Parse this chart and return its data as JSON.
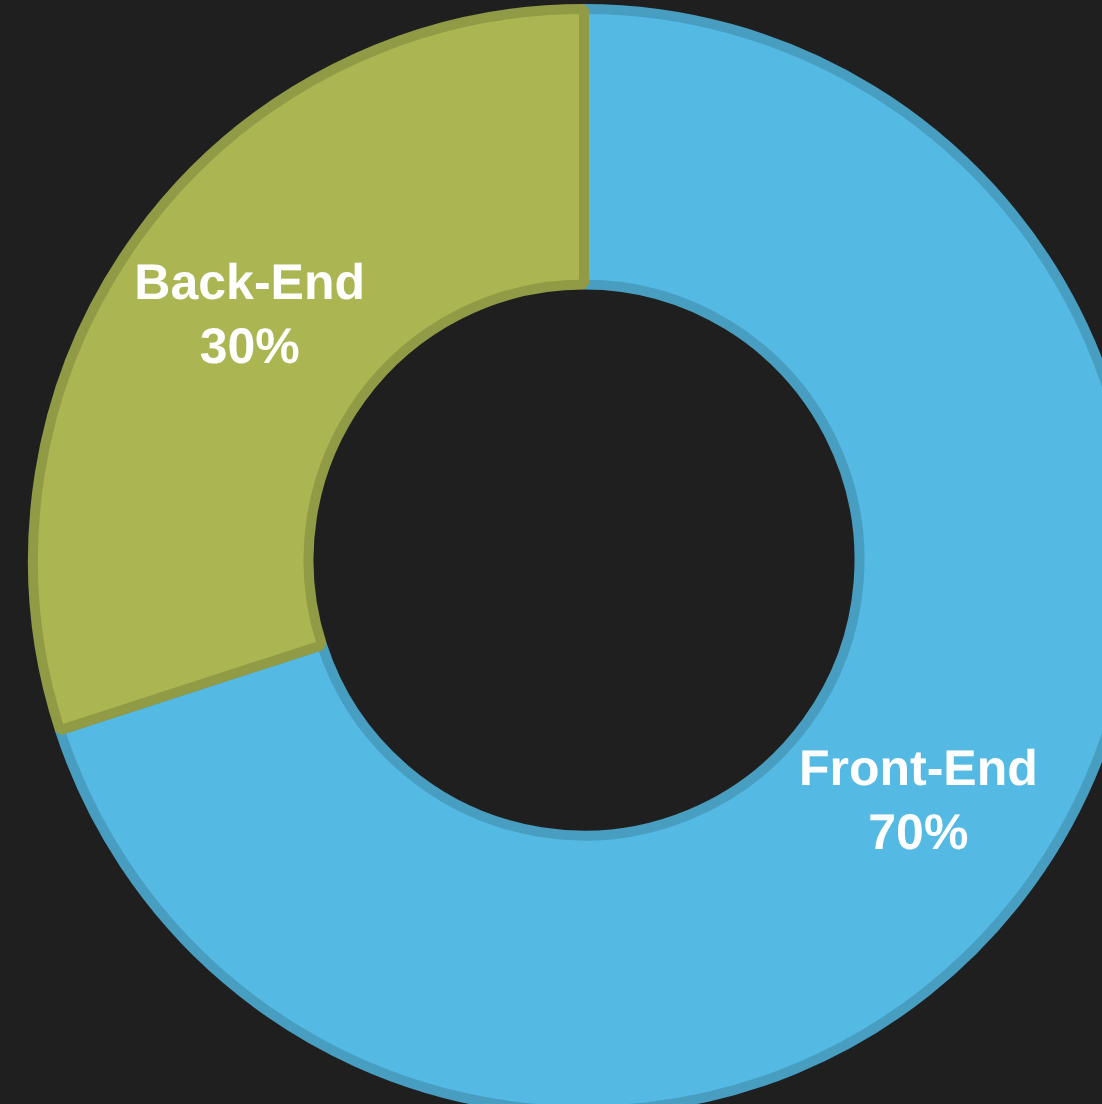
{
  "chart_data": {
    "type": "donut",
    "categories": [
      "Front-End",
      "Back-End"
    ],
    "values": [
      70,
      30
    ],
    "colors": [
      "#55bae3",
      "#abb652"
    ],
    "value_labels": [
      "70%",
      "30%"
    ],
    "legend": false
  }
}
